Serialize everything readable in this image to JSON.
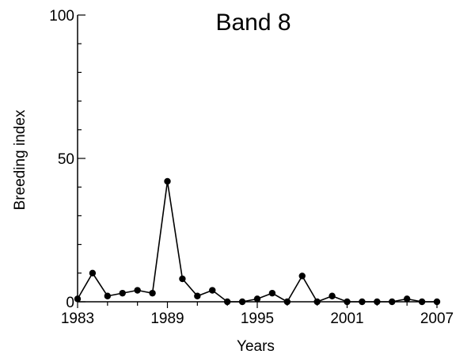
{
  "chart_data": {
    "type": "line",
    "title": "Band 8",
    "xlabel": "Years",
    "ylabel": "Breeding index",
    "xlim": [
      1983,
      2007
    ],
    "ylim": [
      0,
      100
    ],
    "x_ticks": [
      "1983",
      "1989",
      "1995",
      "2001",
      "2007"
    ],
    "y_ticks": [
      "0",
      "50",
      "100"
    ],
    "grid": false,
    "series": [
      {
        "x": [
          1983,
          1984,
          1985,
          1986,
          1987,
          1988,
          1989,
          1990,
          1991,
          1992,
          1993,
          1994,
          1995,
          1996,
          1997,
          1998,
          1999,
          2000,
          2001,
          2002,
          2003,
          2004,
          2005,
          2006,
          2007
        ],
        "values": [
          1,
          10,
          2,
          3,
          4,
          3,
          42,
          8,
          2,
          4,
          0,
          0,
          1,
          3,
          0,
          9,
          0,
          2,
          0,
          0,
          0,
          0,
          1,
          0,
          0
        ]
      }
    ],
    "colors": {
      "line": "#000000",
      "marker": "#000000"
    }
  }
}
